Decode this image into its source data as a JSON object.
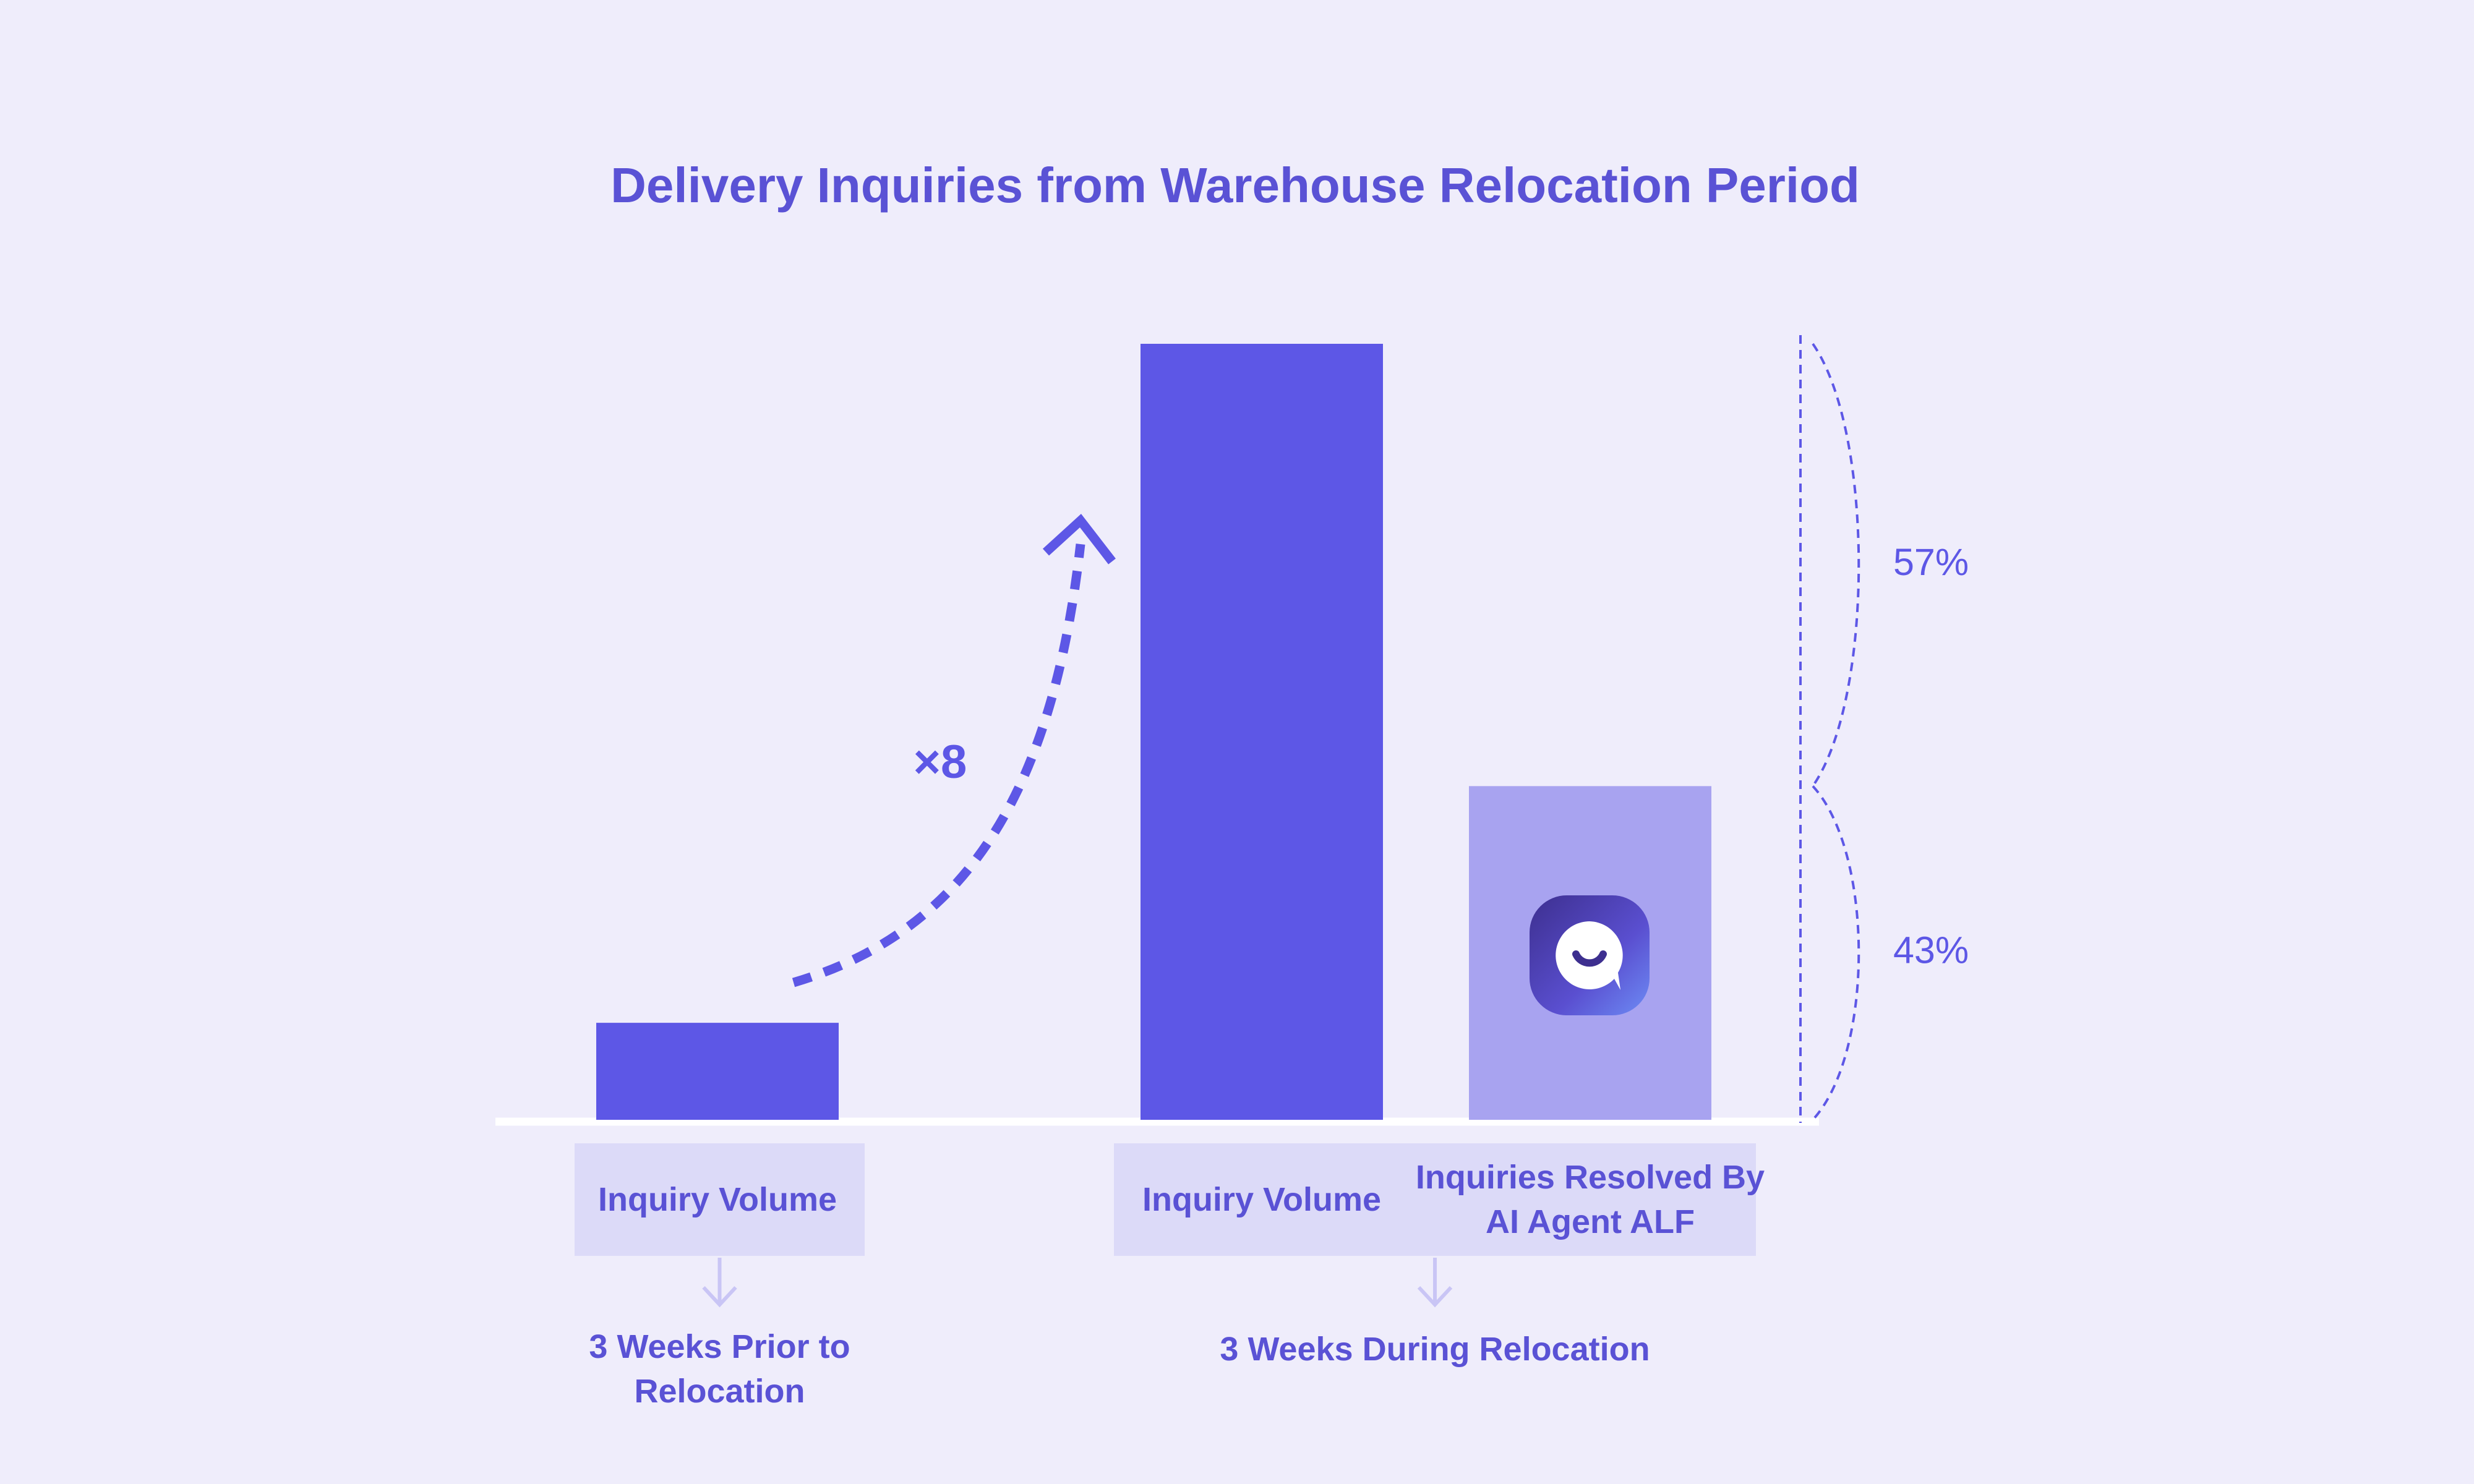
{
  "chart_data": {
    "type": "bar",
    "title": "Delivery Inquiries from Warehouse Relocation Period",
    "groups": [
      {
        "name": "3 Weeks Prior to Relocation",
        "categories": [
          "Inquiry Volume"
        ],
        "values": [
          12.5
        ],
        "colors": [
          "#5d57e6"
        ]
      },
      {
        "name": "3 Weeks During Relocation",
        "categories": [
          "Inquiry Volume",
          "Inquiries Resolved By AI Agent ALF"
        ],
        "values": [
          100,
          43
        ],
        "colors": [
          "#5d57e6",
          "#a8a3f0"
        ]
      }
    ],
    "annotation": "×8",
    "brackets": [
      {
        "label": "57%",
        "value": 57
      },
      {
        "label": "43%",
        "value": 43
      }
    ]
  }
}
